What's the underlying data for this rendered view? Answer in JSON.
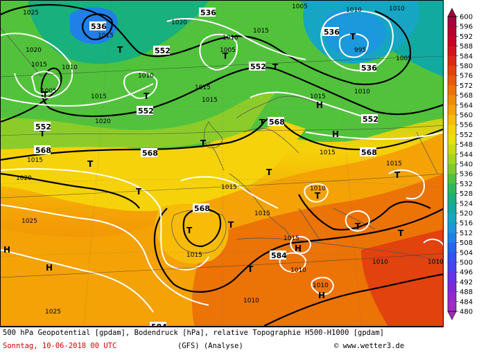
{
  "map": {
    "highs_lows": [
      {
        "text": "T"
      },
      {
        "text": "T"
      },
      {
        "text": "T"
      },
      {
        "text": "T"
      },
      {
        "text": "T"
      },
      {
        "text": "T"
      },
      {
        "text": "T"
      },
      {
        "text": "T"
      },
      {
        "text": "T"
      },
      {
        "text": "T"
      },
      {
        "text": "T"
      },
      {
        "text": "T"
      },
      {
        "text": "T"
      },
      {
        "text": "T"
      },
      {
        "text": "T"
      },
      {
        "text": "T"
      },
      {
        "text": "T"
      },
      {
        "text": "T"
      },
      {
        "text": "H"
      },
      {
        "text": "H"
      },
      {
        "text": "H"
      },
      {
        "text": "H"
      },
      {
        "text": "H"
      },
      {
        "text": "H"
      },
      {
        "text": "T"
      }
    ],
    "geopotential_labels": [
      "536",
      "536",
      "536",
      "552",
      "552",
      "552",
      "552",
      "552",
      "552",
      "568",
      "568",
      "568",
      "568",
      "568",
      "584",
      "584",
      "536"
    ],
    "pressure_labels": [
      "1025",
      "1015",
      "1020",
      "1015",
      "1010",
      "1005",
      "1020",
      "1015",
      "1010",
      "1005",
      "1015",
      "1010",
      "1015",
      "1010",
      "1005",
      "995",
      "1005",
      "1010",
      "1015",
      "1020",
      "1015",
      "1015",
      "1010",
      "1020",
      "1015",
      "1025",
      "1015",
      "1010",
      "1015",
      "1010",
      "1015",
      "1015",
      "1010",
      "1010",
      "1025",
      "1015",
      "1010",
      "1010"
    ]
  },
  "legend": {
    "values": [
      "600",
      "596",
      "592",
      "588",
      "584",
      "580",
      "576",
      "572",
      "568",
      "564",
      "560",
      "556",
      "552",
      "548",
      "544",
      "540",
      "536",
      "532",
      "528",
      "524",
      "520",
      "516",
      "512",
      "508",
      "504",
      "500",
      "496",
      "492",
      "488",
      "484",
      "480"
    ],
    "colors": [
      "#a4003a",
      "#b5002f",
      "#c80026",
      "#d4141c",
      "#dd2a14",
      "#e2420e",
      "#e85a0a",
      "#ec7306",
      "#f08a05",
      "#f4a206",
      "#f8bb08",
      "#f6d20a",
      "#e8e20c",
      "#c8dc14",
      "#a4d420",
      "#7ecc2c",
      "#52c23c",
      "#2cb85a",
      "#18b07c",
      "#12aaa0",
      "#16a6c4",
      "#1c98dc",
      "#2080e8",
      "#2466ee",
      "#3452f0",
      "#4a42ee",
      "#6434e6",
      "#7e28dc",
      "#922ad0",
      "#a02cc2",
      "#a62cb4"
    ]
  },
  "footer": {
    "line1": "500 hPa Geopotential [gpdam], Bodendruck [hPa], relative Topographie H500-H1000 [gpdam]",
    "date": "Sonntag, 10-06-2018  00 UTC",
    "model": "(GFS)  (Analyse)",
    "credit": "© www.wetter3.de"
  }
}
